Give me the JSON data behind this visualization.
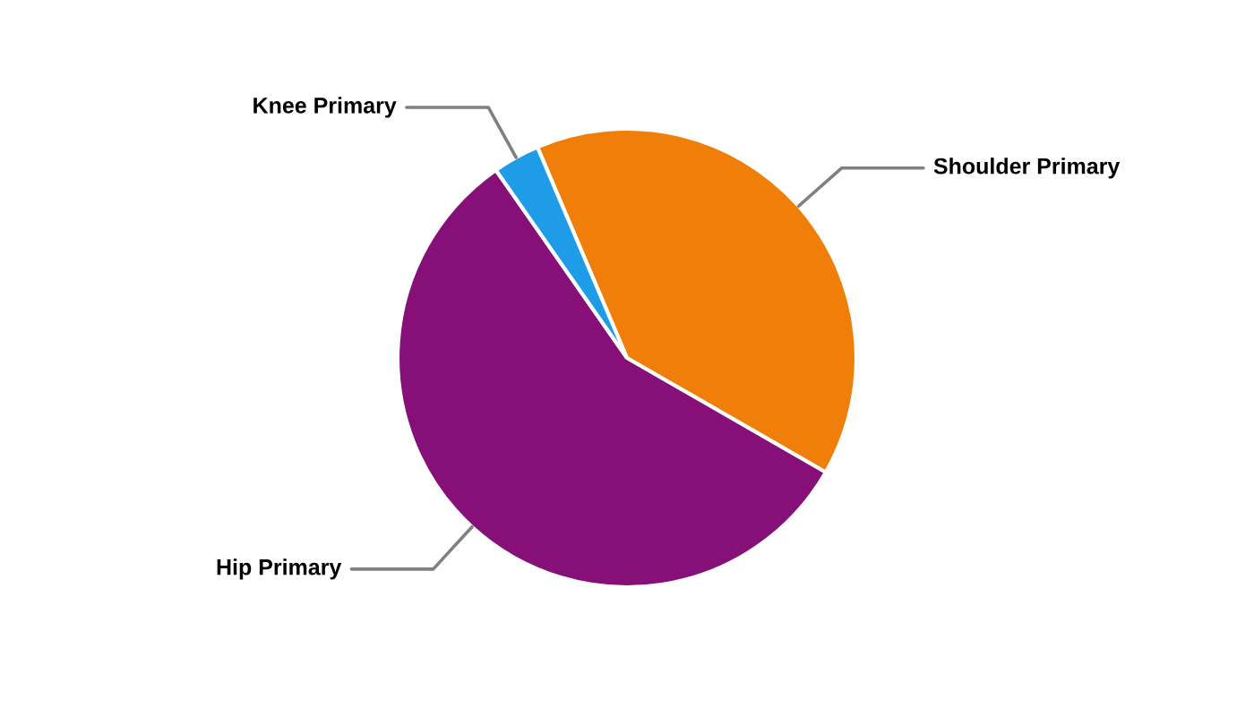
{
  "chart_data": {
    "type": "pie",
    "categories": [
      "Shoulder Primary",
      "Hip Primary",
      "Knee Primary"
    ],
    "values": [
      39.7,
      57.0,
      3.3
    ],
    "colors": [
      "#f07f09",
      "#861078",
      "#1f9ce8"
    ],
    "legend": false
  }
}
